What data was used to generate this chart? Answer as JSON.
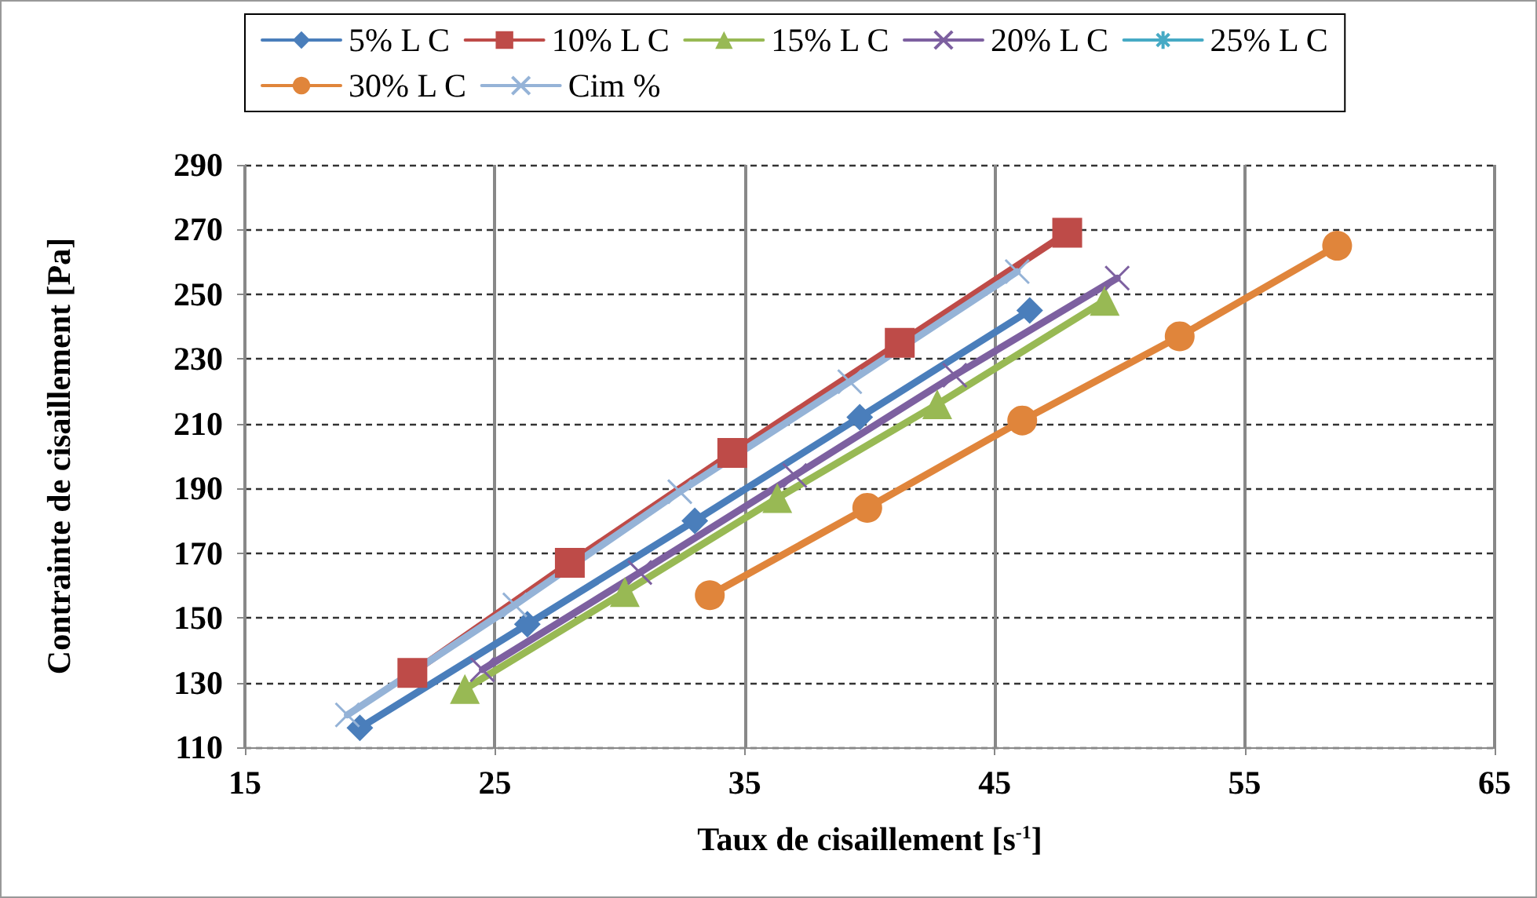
{
  "chart_data": {
    "type": "line",
    "xlabel": "Taux de cisaillement [s$^{-1}$]",
    "ylabel": "Contrainte de cisaillement [Pa]",
    "xlim": [
      15,
      65
    ],
    "xticks": [
      15,
      25,
      35,
      45,
      55,
      65
    ],
    "ylim": [
      110,
      290
    ],
    "yticks": [
      110,
      130,
      150,
      170,
      190,
      210,
      230,
      250,
      270,
      290
    ],
    "grid": true,
    "legend": "top",
    "line_style": "solid",
    "series": [
      {
        "name": "5% L C",
        "color": "#4a7ebb",
        "marker": "diamond",
        "x": [
          19.6,
          26.3,
          33.0,
          39.6,
          46.4
        ],
        "values": [
          116,
          148,
          180,
          212,
          245
        ]
      },
      {
        "name": "10% L C",
        "color": "#be4b48",
        "marker": "square",
        "x": [
          21.7,
          28.0,
          34.5,
          41.2,
          47.9
        ],
        "values": [
          133,
          167,
          201,
          235,
          269
        ]
      },
      {
        "name": "15% L C",
        "color": "#98b954",
        "marker": "triangle",
        "x": [
          23.8,
          30.2,
          36.3,
          42.7,
          49.4
        ],
        "values": [
          128,
          158,
          187,
          216,
          248
        ]
      },
      {
        "name": "20% L C",
        "color": "#7d60a0",
        "marker": "cross",
        "x": [
          24.5,
          30.8,
          37.0,
          43.4,
          49.9
        ],
        "values": [
          134,
          164,
          194,
          225,
          255
        ]
      },
      {
        "name": "25% L C",
        "color": "#46aac5",
        "marker": "star",
        "x": [
          null,
          null,
          null,
          null,
          null
        ],
        "values": [
          null,
          null,
          null,
          null,
          null
        ]
      },
      {
        "name": "30% L C",
        "color": "#e0853b",
        "marker": "circle",
        "x": [
          33.6,
          39.9,
          46.1,
          52.4,
          58.7
        ],
        "values": [
          157,
          184,
          211,
          237,
          265
        ]
      },
      {
        "name": "Cim %",
        "color": "#95b3d7",
        "marker": "cross",
        "x": [
          19.1,
          25.8,
          32.4,
          39.2,
          45.9
        ],
        "values": [
          120,
          154,
          189,
          223,
          257
        ]
      }
    ]
  }
}
